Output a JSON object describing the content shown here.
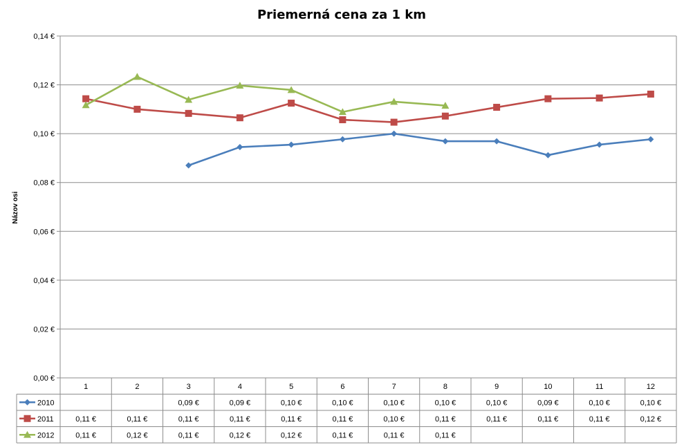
{
  "chart_data": {
    "type": "line",
    "title": "Priemerná cena za 1 km",
    "ylabel": "Názov osi",
    "xlabel": "",
    "ylim": [
      0,
      0.14
    ],
    "yticks": [
      "0,00 €",
      "0,02 €",
      "0,04 €",
      "0,06 €",
      "0,08 €",
      "0,10 €",
      "0,12 €",
      "0,14 €"
    ],
    "categories": [
      "1",
      "2",
      "3",
      "4",
      "5",
      "6",
      "7",
      "8",
      "9",
      "10",
      "11",
      "12"
    ],
    "grid": true,
    "legend": "data-table",
    "series": [
      {
        "name": "2010",
        "color": "#4a7ebb",
        "marker": "diamond",
        "values": [
          null,
          null,
          0.087,
          0.0945,
          0.0955,
          0.0977,
          0.1,
          0.0969,
          0.0969,
          0.0912,
          0.0955,
          0.0977
        ],
        "labels": [
          "",
          "",
          "0,09 €",
          "0,09 €",
          "0,10 €",
          "0,10 €",
          "0,10 €",
          "0,10 €",
          "0,10 €",
          "0,09 €",
          "0,10 €",
          "0,10 €"
        ]
      },
      {
        "name": "2011",
        "color": "#be4b48",
        "marker": "square",
        "values": [
          0.1143,
          0.11,
          0.1083,
          0.1065,
          0.1125,
          0.1057,
          0.1047,
          0.1072,
          0.1108,
          0.1143,
          0.1146,
          0.1162
        ],
        "labels": [
          "0,11 €",
          "0,11 €",
          "0,11 €",
          "0,11 €",
          "0,11 €",
          "0,11 €",
          "0,10 €",
          "0,11 €",
          "0,11 €",
          "0,11 €",
          "0,11 €",
          "0,12 €"
        ]
      },
      {
        "name": "2012",
        "color": "#98b954",
        "marker": "triangle",
        "values": [
          0.1117,
          0.1233,
          0.1139,
          0.1197,
          0.1179,
          0.1089,
          0.1131,
          0.1115,
          null,
          null,
          null,
          null
        ],
        "labels": [
          "0,11 €",
          "0,12 €",
          "0,11 €",
          "0,12 €",
          "0,12 €",
          "0,11 €",
          "0,11 €",
          "0,11 €",
          "",
          "",
          "",
          ""
        ]
      }
    ]
  }
}
